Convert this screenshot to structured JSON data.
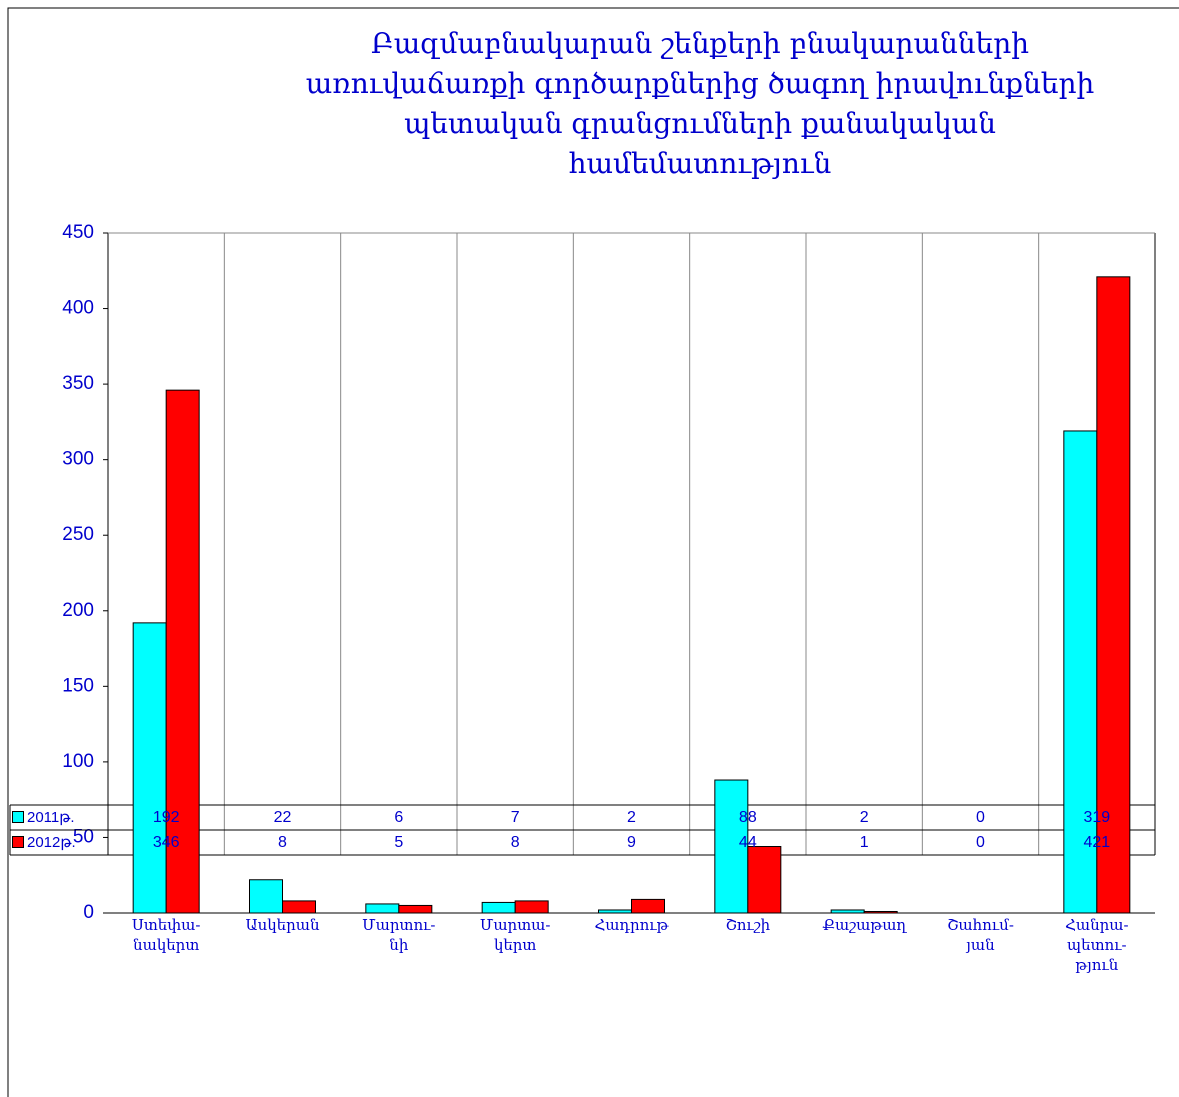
{
  "chart_data": {
    "type": "bar",
    "title": "Բազմաբնակարան շենքերի բնակարանների\nառուվաճառքի գործարքներից ծագող իրավունքների\nպետական գրանցումների քանակական\nհամեմատություն",
    "categories": [
      "Ստեփա-\nնակերտ",
      "Ասկերան",
      "Մարտու-\nնի",
      "Մարտա-\nկերտ",
      "Հադրութ",
      "Շուշի",
      "Քաշաթաղ",
      "Շահում-\nյան",
      "Հանրա-\nպետու-\nթյուն"
    ],
    "series": [
      {
        "name": "2011թ.",
        "color": "#00ffff",
        "values": [
          192,
          22,
          6,
          7,
          2,
          88,
          2,
          0,
          319
        ]
      },
      {
        "name": "2012թ.",
        "color": "#ff0000",
        "values": [
          346,
          8,
          5,
          8,
          9,
          44,
          1,
          0,
          421
        ]
      }
    ],
    "ylim": [
      0,
      450
    ],
    "yticks": [
      0,
      50,
      100,
      150,
      200,
      250,
      300,
      350,
      400,
      450
    ],
    "grid": false
  }
}
